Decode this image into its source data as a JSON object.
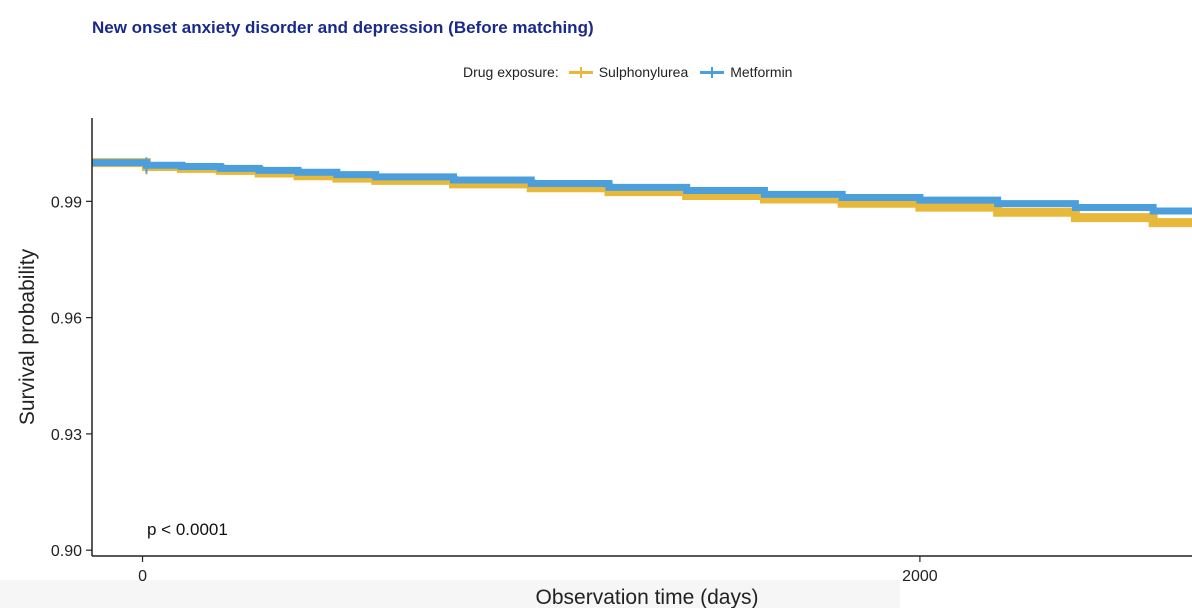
{
  "chart_data": {
    "type": "line",
    "subtype": "kaplan-meier survival curve",
    "title": "New onset anxiety disorder and depression (Before matching)",
    "xlabel": "Observation time (days)",
    "ylabel": "Survival probability",
    "xlim": [
      -130,
      2700
    ],
    "ylim": [
      0.8985,
      1.0115
    ],
    "x_ticks": [
      0,
      2000
    ],
    "x_tick_labels": [
      "0",
      "2000"
    ],
    "y_ticks": [
      0.9,
      0.93,
      0.96,
      0.99
    ],
    "y_tick_labels": [
      "0.90",
      "0.93",
      "0.96",
      "0.99"
    ],
    "grid": false,
    "legend": {
      "title": "Drug exposure:",
      "placement": "top",
      "entries": [
        "Sulphonylurea",
        "Metformin"
      ]
    },
    "annotation": "p < 0.0001",
    "series": [
      {
        "name": "Sulphonylurea",
        "color": "#e8b83a",
        "x": [
          -130,
          0,
          10,
          100,
          200,
          300,
          400,
          500,
          600,
          800,
          1000,
          1200,
          1400,
          1600,
          1800,
          2000,
          2200,
          2400,
          2600,
          2700
        ],
        "y": [
          1.0,
          1.0,
          0.999,
          0.9985,
          0.998,
          0.9973,
          0.9966,
          0.996,
          0.9954,
          0.9945,
          0.9935,
          0.9925,
          0.9915,
          0.9906,
          0.9895,
          0.9885,
          0.9872,
          0.9858,
          0.9845,
          0.984
        ]
      },
      {
        "name": "Metformin",
        "color": "#4a9fdc",
        "x": [
          -130,
          0,
          10,
          100,
          200,
          300,
          400,
          500,
          600,
          800,
          1000,
          1200,
          1400,
          1600,
          1800,
          2000,
          2200,
          2400,
          2600,
          2700
        ],
        "y": [
          1.0,
          1.0,
          0.9993,
          0.999,
          0.9985,
          0.998,
          0.9975,
          0.9969,
          0.9963,
          0.9955,
          0.9946,
          0.9936,
          0.9928,
          0.9918,
          0.991,
          0.9903,
          0.9894,
          0.9884,
          0.9875,
          0.9872
        ]
      }
    ]
  }
}
